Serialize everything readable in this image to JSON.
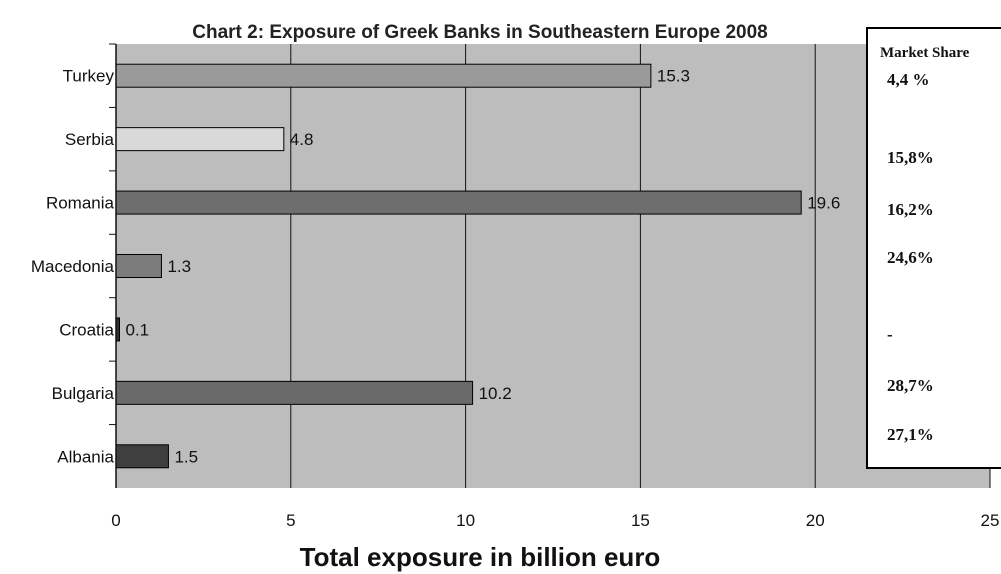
{
  "chart_data": {
    "type": "bar",
    "orientation": "horizontal",
    "title": "Chart 2: Exposure of Greek Banks in Southeastern Europe 2008",
    "xlabel": "Total exposure in billion euro",
    "ylabel": "",
    "xlim": [
      0,
      25
    ],
    "x_ticks": [
      "0",
      "5",
      "10",
      "15",
      "20",
      "25"
    ],
    "grid": "vertical",
    "categories": [
      "Turkey",
      "Serbia",
      "Romania",
      "Macedonia",
      "Croatia",
      "Bulgaria",
      "Albania"
    ],
    "values": [
      15.3,
      4.8,
      19.6,
      1.3,
      0.1,
      10.2,
      1.5
    ],
    "value_labels": [
      "15.3",
      "4.8",
      "19.6",
      "1.3",
      "0.1",
      "10.2",
      "1.5"
    ],
    "bar_colors": [
      "#9a9a9a",
      "#d9d9d9",
      "#6e6e6e",
      "#7c7c7c",
      "#303030",
      "#6a6a6a",
      "#3f3f3f"
    ],
    "plot_background": "#bdbdbd",
    "market_share": {
      "header": "Market Share",
      "values": [
        "4,4 %",
        "15,8%",
        "16,2%",
        "24,6%",
        "-",
        "28,7%",
        "27,1%"
      ]
    }
  }
}
